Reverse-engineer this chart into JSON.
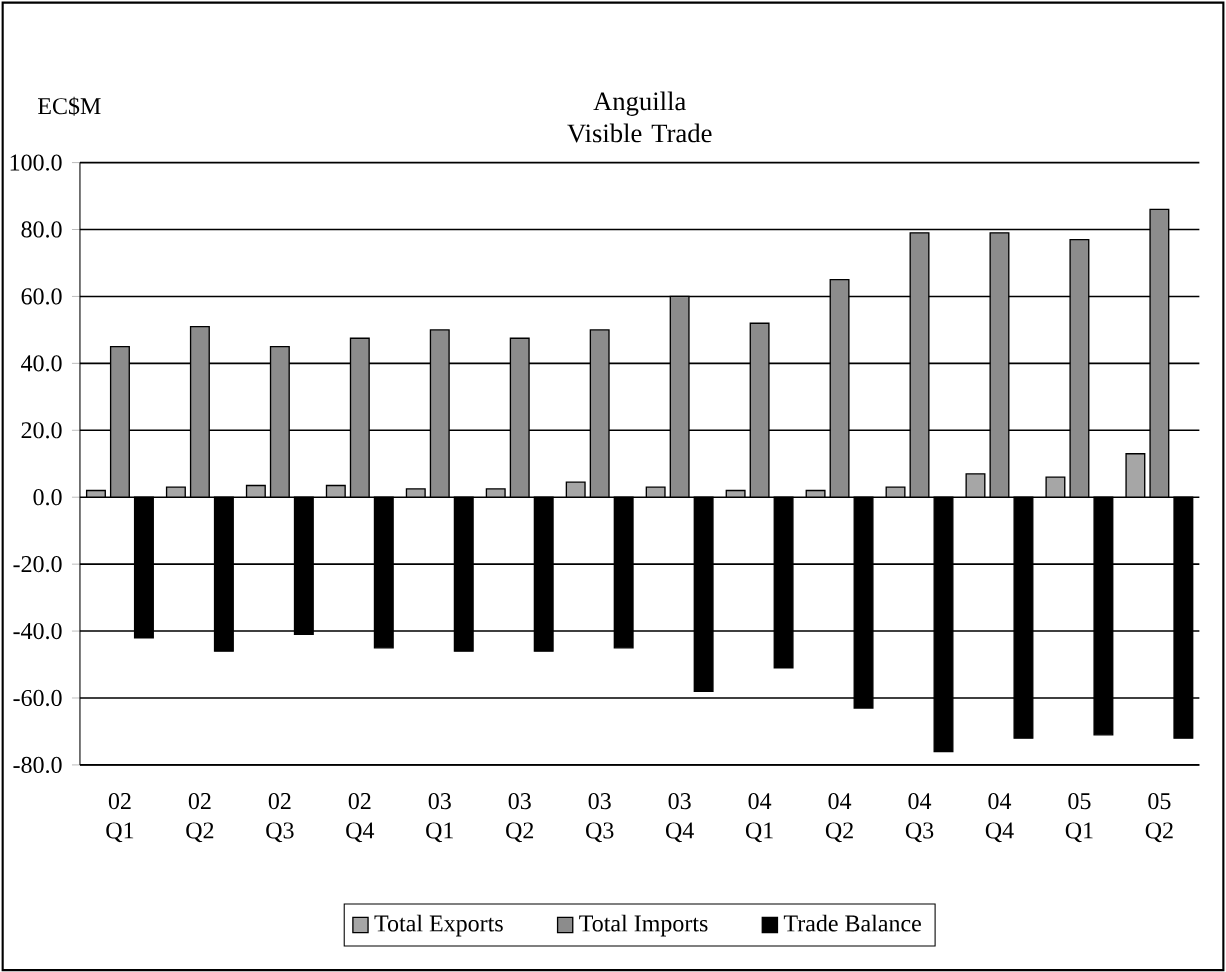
{
  "chart_data": {
    "type": "bar",
    "title": "Anguilla Visible Trade",
    "ylabel": "EC$M",
    "categories": [
      "02 Q1",
      "02 Q2",
      "02 Q3",
      "02 Q4",
      "03 Q1",
      "03 Q2",
      "03 Q3",
      "03 Q4",
      "04 Q1",
      "04 Q2",
      "04 Q3",
      "04 Q4",
      "05 Q1",
      "05 Q2"
    ],
    "series": [
      {
        "name": "Total Exports",
        "color": "#a6a6a6",
        "values": [
          2,
          3,
          3.5,
          3.5,
          2.5,
          2.5,
          4.5,
          3,
          2,
          2,
          3,
          7,
          6,
          13
        ]
      },
      {
        "name": "Total Imports",
        "color": "#8c8c8c",
        "values": [
          45,
          51,
          45,
          47.5,
          50,
          47.5,
          50,
          60,
          52,
          65,
          79,
          79,
          77,
          86
        ]
      },
      {
        "name": "Trade Balance",
        "color": "#000000",
        "values": [
          -42,
          -46,
          -41,
          -45,
          -46,
          -46,
          -45,
          -58,
          -51,
          -63,
          -76,
          -72,
          -71,
          -72
        ]
      }
    ],
    "ylim": [
      -80,
      100
    ],
    "yticks": [
      {
        "value": -80,
        "label": "-80.0"
      },
      {
        "value": -60,
        "label": "-60.0"
      },
      {
        "value": -40,
        "label": "-40.0"
      },
      {
        "value": -20,
        "label": "-20.0"
      },
      {
        "value": 0,
        "label": "0.0"
      },
      {
        "value": 20,
        "label": "20.0"
      },
      {
        "value": 40,
        "label": "40.0"
      },
      {
        "value": 60,
        "label": "60.0"
      },
      {
        "value": 80,
        "label": "80.0"
      },
      {
        "value": 100,
        "label": "100.0"
      }
    ],
    "grid": "y",
    "legend": "bottom"
  }
}
